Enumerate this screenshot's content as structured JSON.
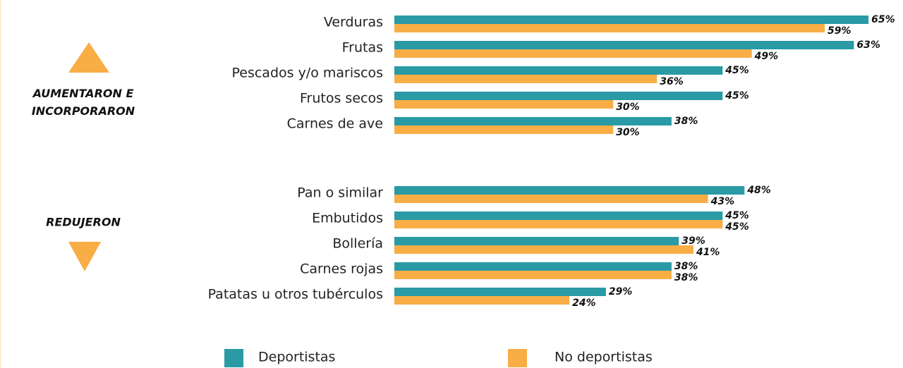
{
  "chart_data": [
    {
      "type": "bar",
      "orientation": "horizontal",
      "title": "AUMENTARON E INCORPORARON",
      "categories": [
        "Verduras",
        "Frutas",
        "Pescados y/o mariscos",
        "Frutos secos",
        "Carnes de ave"
      ],
      "series": [
        {
          "name": "Deportistas",
          "color": "#2a9aa5",
          "values": [
            65,
            63,
            45,
            45,
            38
          ],
          "value_labels": [
            "65%",
            "63%",
            "45%",
            "45%",
            "38%"
          ]
        },
        {
          "name": "No deportistas",
          "color": "#f8ad45",
          "values": [
            59,
            49,
            36,
            30,
            30
          ],
          "value_labels": [
            "59%",
            "49%",
            "36%",
            "30%",
            "30%"
          ]
        }
      ]
    },
    {
      "type": "bar",
      "orientation": "horizontal",
      "title": "REDUJERON",
      "categories": [
        "Pan o similar",
        "Embutidos",
        "Bollería",
        "Carnes rojas",
        "Patatas u otros tubérculos"
      ],
      "series": [
        {
          "color": "#2a9aa5",
          "values": [
            48,
            45,
            39,
            38,
            29
          ],
          "value_labels": [
            "48%",
            "45%",
            "39%",
            "38%",
            "29%"
          ]
        },
        {
          "color": "#f8ad45",
          "values": [
            43,
            45,
            41,
            38,
            24
          ],
          "value_labels": [
            "43%",
            "45%",
            "41%",
            "38%",
            "24%"
          ]
        }
      ]
    }
  ]
}
